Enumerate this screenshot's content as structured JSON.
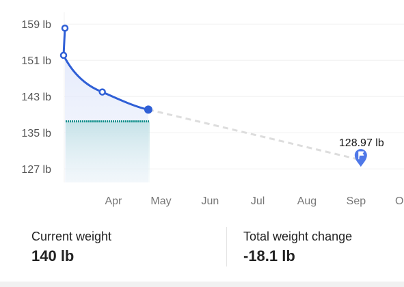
{
  "chart_data": {
    "type": "line",
    "y_unit": "lb",
    "ylim": [
      124,
      161
    ],
    "yticks": [
      159,
      151,
      143,
      135,
      127
    ],
    "ytick_labels": [
      "159 lb",
      "151 lb",
      "143 lb",
      "135 lb",
      "127 lb"
    ],
    "xlim": [
      "2025-03-01",
      "2025-10-08"
    ],
    "xticks": [
      "2025-04-01",
      "2025-05-01",
      "2025-06-01",
      "2025-07-01",
      "2025-08-01",
      "2025-09-01",
      "2025-10-01"
    ],
    "xtick_labels": [
      "Apr",
      "May",
      "Jun",
      "Jul",
      "Aug",
      "Sep",
      "Oct"
    ],
    "actual": [
      {
        "x": "2025-03-01",
        "y": 158.1
      },
      {
        "x": "2025-03-01",
        "y": 152.1
      },
      {
        "x": "2025-03-25",
        "y": 144.0
      },
      {
        "x": "2025-04-23",
        "y": 140.1
      }
    ],
    "projection": [
      {
        "x": "2025-04-23",
        "y": 140.1
      },
      {
        "x": "2025-09-04",
        "y": 128.97
      }
    ],
    "goal": {
      "x": "2025-09-04",
      "y": 128.97,
      "label": "128.97 lb",
      "icon": "flag-icon"
    },
    "target_band": {
      "y": 137.5,
      "x_start": "2025-03-01",
      "x_end": "2025-04-23",
      "color": "#0f8f8a"
    },
    "grid": true,
    "colors": {
      "line": "#2f5fd6",
      "area": "#dfe6fb",
      "projection": "#dddddd",
      "goal_pin": "#4f78e8"
    }
  },
  "stats": {
    "current_weight_label": "Current weight",
    "current_weight_value": "140 lb",
    "total_change_label": "Total weight change",
    "total_change_value": "-18.1 lb"
  }
}
